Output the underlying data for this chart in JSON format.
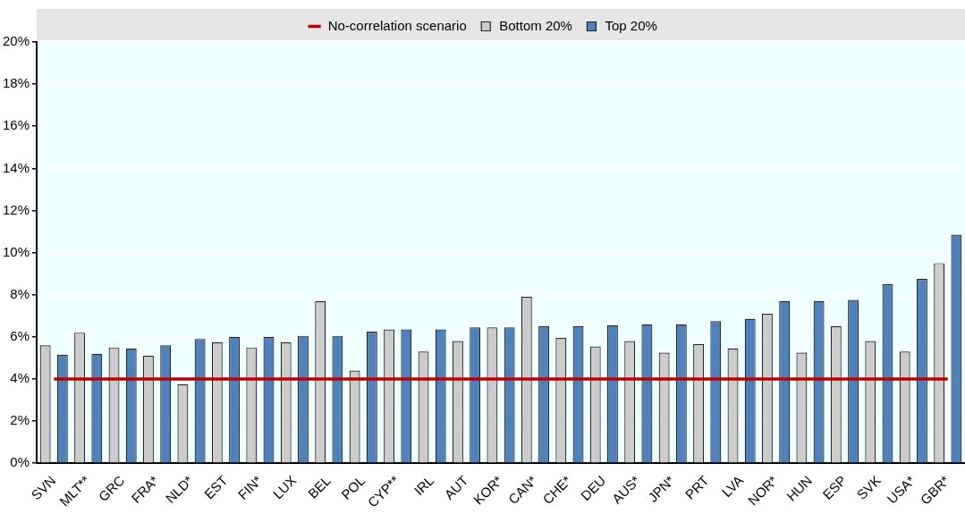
{
  "chart_data": {
    "type": "bar",
    "categories": [
      "SVN",
      "MLT**",
      "GRC",
      "FRA*",
      "NLD*",
      "EST",
      "FIN*",
      "LUX",
      "BEL",
      "POL",
      "CYP**",
      "IRL",
      "AUT",
      "KOR*",
      "CAN*",
      "CHE*",
      "DEU",
      "AUS*",
      "JPN*",
      "PRT",
      "LVA",
      "NOR*",
      "HUN",
      "ESP",
      "SVK",
      "USA*",
      "GBR*"
    ],
    "series": [
      {
        "name": "Bottom 20%",
        "color": "#cccccc",
        "values": [
          5.6,
          6.2,
          5.5,
          5.1,
          3.75,
          5.75,
          5.5,
          5.75,
          7.7,
          4.4,
          6.35,
          5.3,
          5.8,
          6.45,
          7.9,
          5.95,
          5.55,
          5.8,
          5.25,
          5.65,
          5.45,
          7.1,
          5.25,
          6.5,
          5.8,
          5.3,
          9.5
        ]
      },
      {
        "name": "Top 20%",
        "color": "#4f81bd",
        "values": [
          5.15,
          5.2,
          5.45,
          5.6,
          5.9,
          6.0,
          6.0,
          6.05,
          6.05,
          6.25,
          6.35,
          6.35,
          6.45,
          6.45,
          6.5,
          6.5,
          6.55,
          6.6,
          6.6,
          6.75,
          6.85,
          7.7,
          7.7,
          7.75,
          8.5,
          8.75,
          10.85
        ]
      },
      {
        "name": "No-correlation scenario",
        "type": "line",
        "color": "#c00000",
        "values": [
          4,
          4,
          4,
          4,
          4,
          4,
          4,
          4,
          4,
          4,
          4,
          4,
          4,
          4,
          4,
          4,
          4,
          4,
          4,
          4,
          4,
          4,
          4,
          4,
          4,
          4,
          4
        ]
      }
    ],
    "ylim": [
      0,
      20
    ],
    "yticks": [
      {
        "value": 0,
        "label": "0%"
      },
      {
        "value": 2,
        "label": "2%"
      },
      {
        "value": 4,
        "label": "4%"
      },
      {
        "value": 6,
        "label": "6%"
      },
      {
        "value": 8,
        "label": "8%"
      },
      {
        "value": 10,
        "label": "10%"
      },
      {
        "value": 12,
        "label": "12%"
      },
      {
        "value": 14,
        "label": "14%"
      },
      {
        "value": 16,
        "label": "16%"
      },
      {
        "value": 18,
        "label": "18%"
      },
      {
        "value": 20,
        "label": "20%"
      }
    ],
    "grid": "y",
    "legend": "top"
  }
}
